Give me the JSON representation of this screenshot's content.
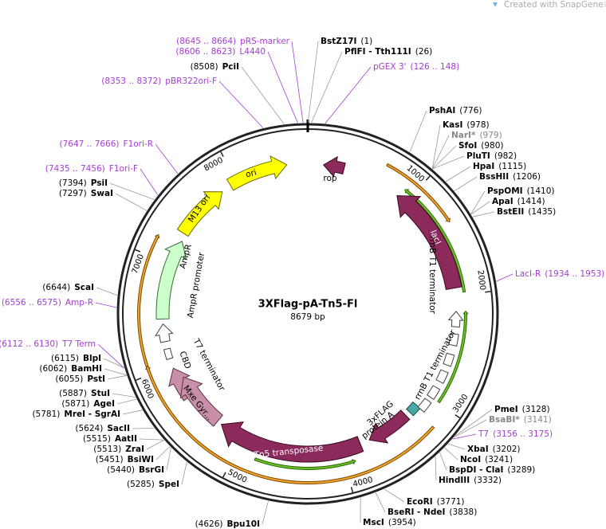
{
  "header": {
    "watermark": "Created with SnapGene®"
  },
  "map": {
    "title": "3XFlag-pA-Tn5-Fl",
    "size": "8679 bp",
    "ticks": [
      "1000",
      "2000",
      "3000",
      "4000",
      "5000",
      "6000",
      "7000",
      "8000"
    ],
    "features": [
      "ori",
      "M13 ori",
      "AmpR",
      "AmpR promoter",
      "T7 terminator",
      "CBD",
      "Mxe Gyr...",
      "Tn5 transposase",
      "3xFLAG",
      "protein A",
      "rrnB T1 terminator",
      "rrnB T1 terminator",
      "lacI",
      "rop"
    ],
    "sites": [
      {
        "name": "BstZ17I",
        "position": "(1)"
      },
      {
        "name": "PflFI - Tth111I",
        "position": "(26)"
      },
      {
        "name": "PshAI",
        "position": "(776)"
      },
      {
        "name": "KasI",
        "position": "(978)"
      },
      {
        "name": "NarI*",
        "position": "(979)"
      },
      {
        "name": "SfoI",
        "position": "(980)"
      },
      {
        "name": "PluTI",
        "position": "(982)"
      },
      {
        "name": "HpaI",
        "position": "(1115)"
      },
      {
        "name": "BssHII",
        "position": "(1206)"
      },
      {
        "name": "PspOMI",
        "position": "(1410)"
      },
      {
        "name": "ApaI",
        "position": "(1414)"
      },
      {
        "name": "BstEII",
        "position": "(1435)"
      },
      {
        "name": "PmeI",
        "position": "(3128)"
      },
      {
        "name": "BsaBI*",
        "position": "(3141)"
      },
      {
        "name": "XbaI",
        "position": "(3202)"
      },
      {
        "name": "NcoI",
        "position": "(3241)"
      },
      {
        "name": "BspDI - ClaI",
        "position": "(3289)"
      },
      {
        "name": "HindIII",
        "position": "(3332)"
      },
      {
        "name": "EcoRI",
        "position": "(3771)"
      },
      {
        "name": "BseRI - NdeI",
        "position": "(3838)"
      },
      {
        "name": "MscI",
        "position": "(3954)"
      },
      {
        "name": "Bpu10I",
        "position": "(4626)"
      },
      {
        "name": "SpeI",
        "position": "(5285)"
      },
      {
        "name": "BsrGI",
        "position": "(5440)"
      },
      {
        "name": "BsiWI",
        "position": "(5451)"
      },
      {
        "name": "ZraI",
        "position": "(5513)"
      },
      {
        "name": "AatII",
        "position": "(5515)"
      },
      {
        "name": "SacII",
        "position": "(5624)"
      },
      {
        "name": "MreI - SgrAI",
        "position": "(5781)"
      },
      {
        "name": "AgeI",
        "position": "(5871)"
      },
      {
        "name": "StuI",
        "position": "(5887)"
      },
      {
        "name": "PstI",
        "position": "(6055)"
      },
      {
        "name": "BamHI",
        "position": "(6062)"
      },
      {
        "name": "BlpI",
        "position": "(6115)"
      },
      {
        "name": "ScaI",
        "position": "(6644)"
      },
      {
        "name": "SwaI",
        "position": "(7297)"
      },
      {
        "name": "PsiI",
        "position": "(7394)"
      },
      {
        "name": "PciI",
        "position": "(8508)"
      }
    ],
    "primers": [
      {
        "name": "pGEX 3'",
        "range": "(126 .. 148)"
      },
      {
        "name": "LacI-R",
        "range": "(1934 .. 1953)"
      },
      {
        "name": "T7",
        "range": "(3156 .. 3175)"
      },
      {
        "name": "T7 Term",
        "range": "(6112 .. 6130)"
      },
      {
        "name": "Amp-R",
        "range": "(6556 .. 6575)"
      },
      {
        "name": "F1ori-F",
        "range": "(7435 .. 7456)"
      },
      {
        "name": "F1ori-R",
        "range": "(7647 .. 7666)"
      },
      {
        "name": "pBR322ori-F",
        "range": "(8353 .. 8372)"
      },
      {
        "name": "L4440",
        "range": "(8606 .. 8623)"
      },
      {
        "name": "pRS-marker",
        "range": "(8645 .. 8664)"
      }
    ]
  }
}
